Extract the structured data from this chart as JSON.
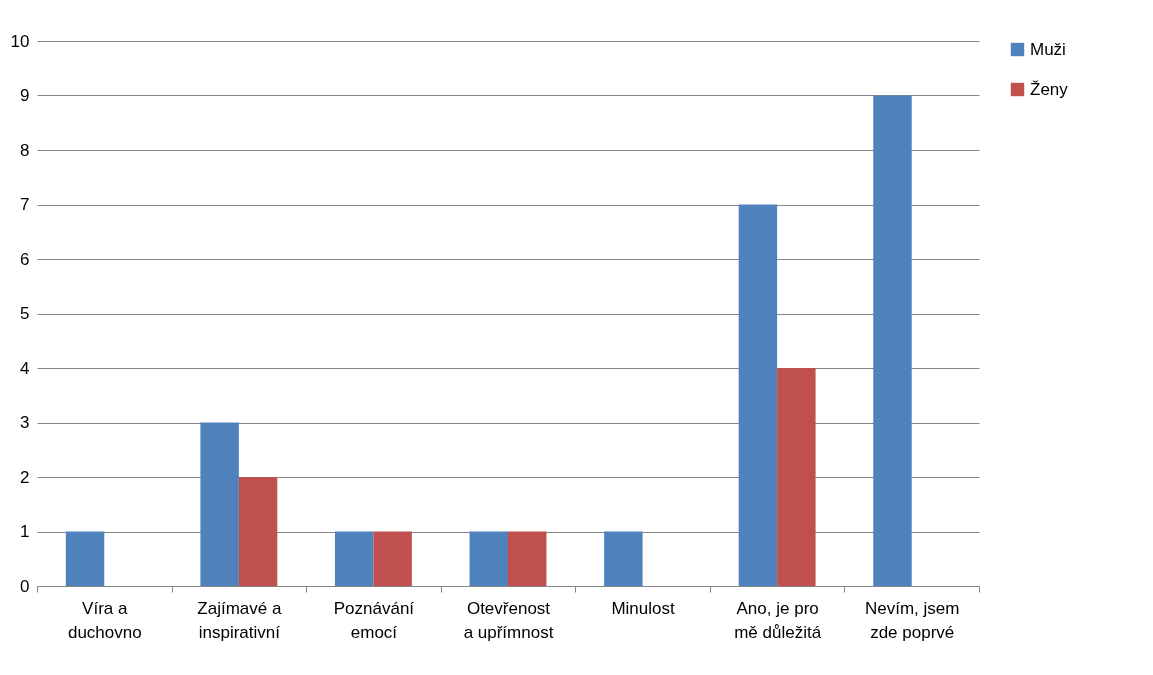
{
  "chart_data": {
    "type": "bar",
    "categories": [
      "Víra a duchovno",
      "Zajímavé a inspirativní",
      "Poznávání emocí",
      "Otevřenost a upřímnost",
      "Minulost",
      "Ano, je pro mě důležitá",
      "Nevím, jsem zde poprvé"
    ],
    "series": [
      {
        "name": "Muži",
        "color": "#4f81bd",
        "values": [
          1,
          3,
          1,
          1,
          1,
          7,
          9
        ]
      },
      {
        "name": "Ženy",
        "color": "#c0504d",
        "values": [
          0,
          2,
          1,
          1,
          0,
          4,
          0
        ]
      }
    ],
    "ylim": [
      0,
      10
    ],
    "yticks": [
      0,
      1,
      2,
      3,
      4,
      5,
      6,
      7,
      8,
      9,
      10
    ],
    "grid": "y",
    "legend": "right"
  }
}
